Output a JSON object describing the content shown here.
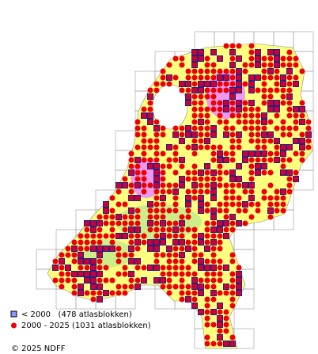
{
  "legend": {
    "items": [
      {
        "label": "< 2000   (478 atlasblokken)"
      },
      {
        "label": "2000 - 2025 (1031 atlasblokken)"
      }
    ]
  },
  "footer": {
    "copyright": "© 2025 NDFF"
  }
}
